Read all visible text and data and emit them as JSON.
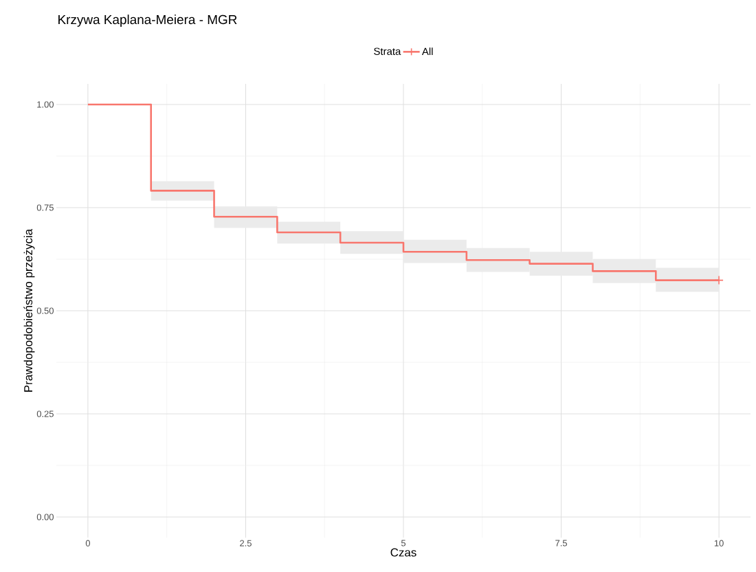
{
  "chart_data": {
    "type": "step",
    "title": "Krzywa Kaplana-Meiera - MGR",
    "xlabel": "Czas",
    "ylabel": "Prawdopodobieństwo przeżycia",
    "legend_title": "Strata",
    "x": [
      0,
      1,
      2,
      3,
      4,
      5,
      6,
      7,
      8,
      9,
      10
    ],
    "series": [
      {
        "name": "All",
        "color": "#f8766d",
        "values": [
          1.0,
          0.791,
          0.728,
          0.69,
          0.665,
          0.643,
          0.623,
          0.614,
          0.596,
          0.574,
          0.574
        ],
        "lower": [
          null,
          0.767,
          0.701,
          0.663,
          0.638,
          0.616,
          0.594,
          0.585,
          0.567,
          0.546,
          0.546
        ],
        "upper": [
          null,
          0.814,
          0.753,
          0.716,
          0.693,
          0.672,
          0.652,
          0.643,
          0.625,
          0.604,
          0.604
        ]
      },
      {
        "type": "scatter",
        "x": [
          10
        ],
        "color": "#f8766d",
        "values": [
          0.574
        ],
        "marker": "cross"
      }
    ],
    "xlim": [
      -0.5,
      10.5
    ],
    "ylim": [
      -0.05,
      1.05
    ],
    "xticks": [
      0,
      {
        "value": 2.5,
        "label": "2.5"
      },
      5,
      {
        "value": 7.5,
        "label": "7.5"
      },
      10
    ],
    "yticks": [
      {
        "value": 0,
        "label": "0.00"
      },
      {
        "value": 0.25,
        "label": "0.25"
      },
      {
        "value": 0.5,
        "label": "0.50"
      },
      {
        "value": 0.75,
        "label": "0.75"
      },
      {
        "value": 1.0,
        "label": "1.00"
      }
    ],
    "grid": true,
    "legend": "top",
    "line_style": "solid"
  }
}
